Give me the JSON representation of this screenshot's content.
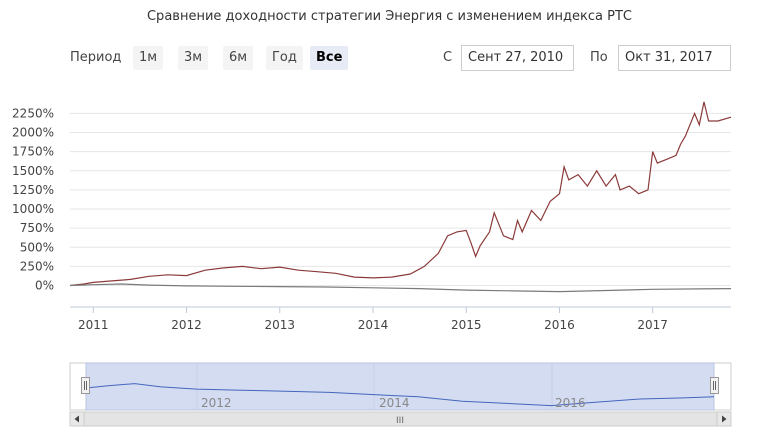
{
  "title": "Сравнение доходности стратегии Энергия с изменением индекса РТС",
  "range_selector": {
    "period_label": "Период",
    "buttons": [
      {
        "label": "1м",
        "active": false
      },
      {
        "label": "3м",
        "active": false
      },
      {
        "label": "6м",
        "active": false
      },
      {
        "label": "Год",
        "active": false
      },
      {
        "label": "Все",
        "active": true
      }
    ],
    "from_label": "С",
    "from_value": "Сент 27, 2010",
    "to_label": "По",
    "to_value": "Окт 31, 2017"
  },
  "navigator": {
    "tick_labels": [
      "2012",
      "2014",
      "2016"
    ],
    "scrollbar_grip": "III",
    "left_arrow_icon": "arrow-left-icon",
    "right_arrow_icon": "arrow-right-icon"
  },
  "colors": {
    "strategy": "#8b3a3a",
    "index": "#7a7a7a",
    "navigator_line": "#4466bb",
    "navigator_fill": "#d4dcf2"
  },
  "chart_data": {
    "type": "line",
    "x_ticks": [
      "2011",
      "2012",
      "2013",
      "2014",
      "2015",
      "2016",
      "2017"
    ],
    "y_ticks": [
      "0%",
      "250%",
      "500%",
      "750%",
      "1000%",
      "1250%",
      "1500%",
      "1750%",
      "2000%",
      "2250%"
    ],
    "ylim": [
      -150,
      2500
    ],
    "xlim": [
      2010.75,
      2017.84
    ],
    "series": [
      {
        "x": [
          2010.75,
          2010.9,
          2011.0,
          2011.2,
          2011.4,
          2011.6,
          2011.8,
          2012.0,
          2012.2,
          2012.4,
          2012.6,
          2012.8,
          2013.0,
          2013.2,
          2013.4,
          2013.6,
          2013.8,
          2014.0,
          2014.2,
          2014.4,
          2014.55,
          2014.7,
          2014.8,
          2014.9,
          2015.0,
          2015.05,
          2015.1,
          2015.15,
          2015.25,
          2015.3,
          2015.4,
          2015.5,
          2015.55,
          2015.6,
          2015.7,
          2015.8,
          2015.9,
          2016.0,
          2016.05,
          2016.1,
          2016.2,
          2016.3,
          2016.4,
          2016.5,
          2016.6,
          2016.65,
          2016.75,
          2016.85,
          2016.95,
          2017.0,
          2017.05,
          2017.15,
          2017.25,
          2017.3,
          2017.35,
          2017.45,
          2017.5,
          2017.55,
          2017.6,
          2017.7,
          2017.84
        ],
        "y": [
          0,
          20,
          40,
          60,
          80,
          120,
          140,
          130,
          200,
          230,
          250,
          220,
          240,
          200,
          180,
          160,
          110,
          100,
          110,
          150,
          250,
          420,
          650,
          700,
          720,
          560,
          380,
          520,
          700,
          950,
          650,
          600,
          850,
          700,
          980,
          850,
          1100,
          1200,
          1550,
          1380,
          1450,
          1300,
          1500,
          1300,
          1450,
          1250,
          1300,
          1200,
          1250,
          1750,
          1600,
          1650,
          1700,
          1850,
          1950,
          2250,
          2100,
          2400,
          2150,
          2150,
          2200
        ]
      },
      {
        "x": [
          2010.75,
          2011.0,
          2011.3,
          2011.6,
          2012.0,
          2012.5,
          2013.0,
          2013.5,
          2014.0,
          2014.5,
          2015.0,
          2015.5,
          2016.0,
          2016.5,
          2017.0,
          2017.5,
          2017.84
        ],
        "y": [
          0,
          10,
          20,
          5,
          -5,
          -10,
          -15,
          -20,
          -30,
          -40,
          -60,
          -70,
          -80,
          -65,
          -50,
          -45,
          -40
        ]
      }
    ]
  }
}
